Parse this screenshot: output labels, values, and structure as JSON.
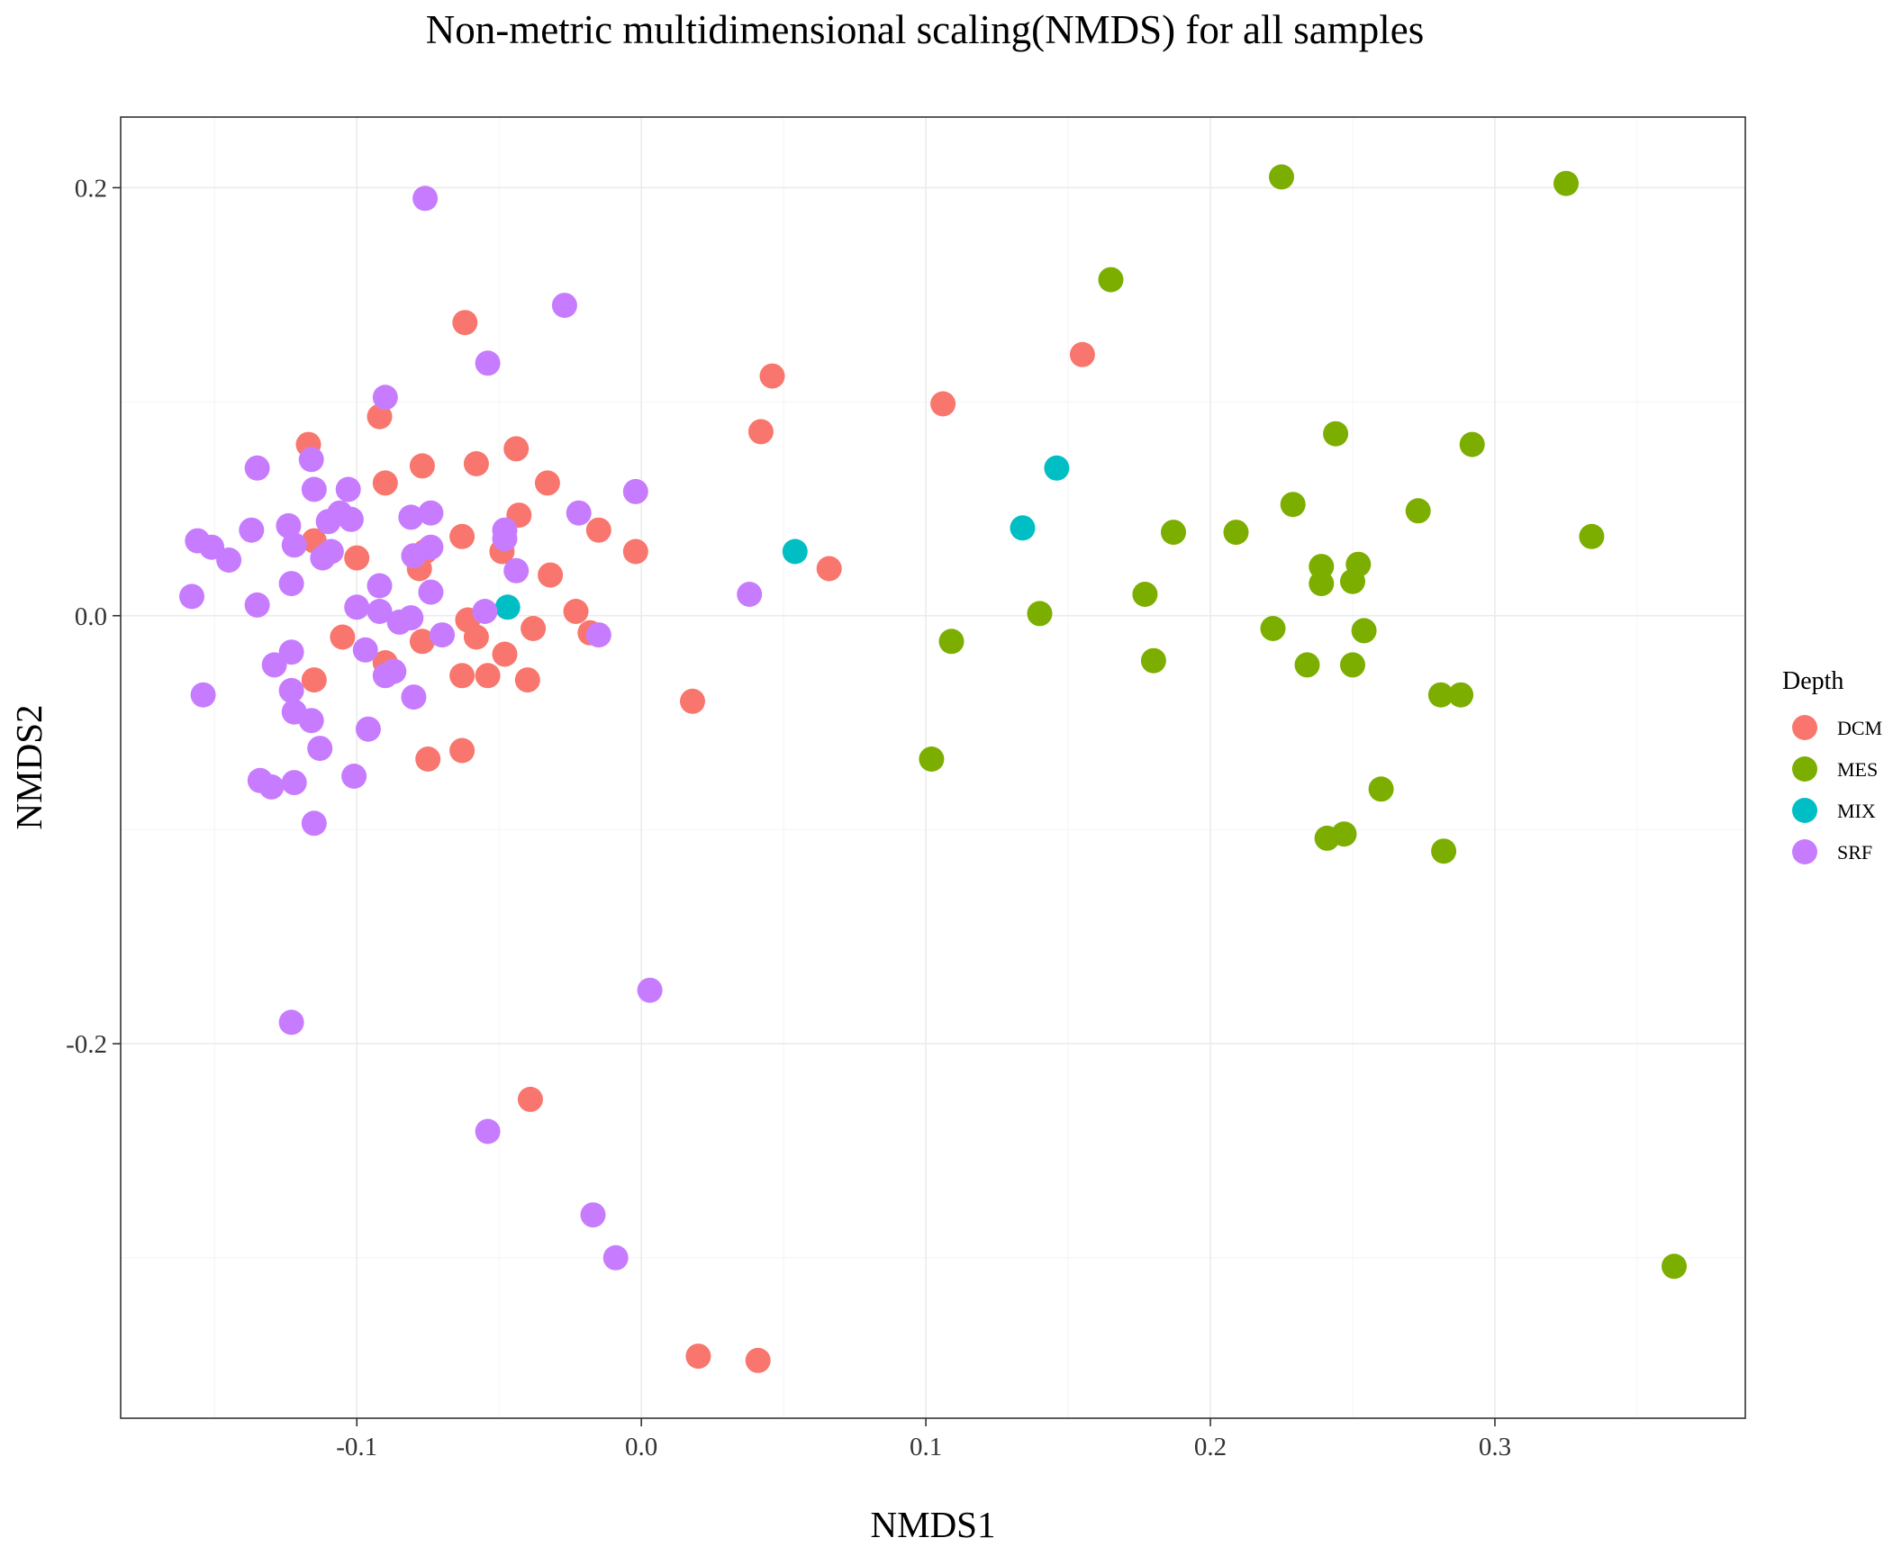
{
  "chart_data": {
    "type": "scatter",
    "title": "Non-metric multidimensional scaling(NMDS) for all samples",
    "xlabel": "NMDS1",
    "ylabel": "NMDS2",
    "xlim": [
      -0.183,
      0.388
    ],
    "ylim": [
      -0.375,
      0.233
    ],
    "xticks": [
      -0.1,
      0.0,
      0.1,
      0.2,
      0.3
    ],
    "xtick_labels": [
      "-0.1",
      "0.0",
      "0.1",
      "0.2",
      "0.3"
    ],
    "yticks": [
      -0.2,
      0.0,
      0.2
    ],
    "ytick_labels": [
      "-0.2",
      "0.0",
      "0.2"
    ],
    "grid": true,
    "legend": {
      "title": "Depth",
      "position": "right"
    },
    "series": [
      {
        "name": "DCM",
        "color": "#F8766D",
        "points": [
          [
            -0.117,
            0.08
          ],
          [
            -0.092,
            0.093
          ],
          [
            -0.062,
            0.137
          ],
          [
            -0.09,
            0.062
          ],
          [
            -0.077,
            0.07
          ],
          [
            -0.058,
            0.071
          ],
          [
            -0.044,
            0.078
          ],
          [
            -0.033,
            0.062
          ],
          [
            -0.043,
            0.047
          ],
          [
            -0.115,
            0.035
          ],
          [
            -0.063,
            0.037
          ],
          [
            -0.076,
            0.03
          ],
          [
            -0.078,
            0.022
          ],
          [
            -0.049,
            0.03
          ],
          [
            -0.1,
            0.027
          ],
          [
            -0.032,
            0.019
          ],
          [
            -0.015,
            0.04
          ],
          [
            -0.002,
            0.03
          ],
          [
            -0.061,
            -0.002
          ],
          [
            -0.105,
            -0.01
          ],
          [
            -0.077,
            -0.012
          ],
          [
            -0.058,
            -0.01
          ],
          [
            -0.023,
            0.002
          ],
          [
            -0.018,
            -0.008
          ],
          [
            -0.038,
            -0.006
          ],
          [
            -0.09,
            -0.022
          ],
          [
            -0.115,
            -0.03
          ],
          [
            -0.063,
            -0.028
          ],
          [
            -0.054,
            -0.028
          ],
          [
            -0.048,
            -0.018
          ],
          [
            -0.04,
            -0.03
          ],
          [
            -0.075,
            -0.067
          ],
          [
            -0.063,
            -0.063
          ],
          [
            0.018,
            -0.04
          ],
          [
            -0.039,
            -0.226
          ],
          [
            0.046,
            0.112
          ],
          [
            0.042,
            0.086
          ],
          [
            0.066,
            0.022
          ],
          [
            0.106,
            0.099
          ],
          [
            0.155,
            0.122
          ],
          [
            0.02,
            -0.346
          ],
          [
            0.041,
            -0.348
          ]
        ]
      },
      {
        "name": "MES",
        "color": "#7CAE00",
        "points": [
          [
            0.225,
            0.205
          ],
          [
            0.325,
            0.202
          ],
          [
            0.165,
            0.157
          ],
          [
            0.244,
            0.085
          ],
          [
            0.292,
            0.08
          ],
          [
            0.229,
            0.052
          ],
          [
            0.273,
            0.049
          ],
          [
            0.187,
            0.039
          ],
          [
            0.209,
            0.039
          ],
          [
            0.334,
            0.037
          ],
          [
            0.239,
            0.023
          ],
          [
            0.252,
            0.024
          ],
          [
            0.239,
            0.015
          ],
          [
            0.25,
            0.016
          ],
          [
            0.177,
            0.01
          ],
          [
            0.14,
            0.001
          ],
          [
            0.222,
            -0.006
          ],
          [
            0.254,
            -0.007
          ],
          [
            0.109,
            -0.012
          ],
          [
            0.18,
            -0.021
          ],
          [
            0.234,
            -0.023
          ],
          [
            0.25,
            -0.023
          ],
          [
            0.281,
            -0.037
          ],
          [
            0.288,
            -0.037
          ],
          [
            0.102,
            -0.067
          ],
          [
            0.26,
            -0.081
          ],
          [
            0.241,
            -0.104
          ],
          [
            0.247,
            -0.102
          ],
          [
            0.282,
            -0.11
          ],
          [
            0.363,
            -0.304
          ]
        ]
      },
      {
        "name": "MIX",
        "color": "#00BFC4",
        "points": [
          [
            0.146,
            0.069
          ],
          [
            0.134,
            0.041
          ],
          [
            0.054,
            0.03
          ],
          [
            -0.047,
            0.004
          ]
        ]
      },
      {
        "name": "SRF",
        "color": "#C77CFF",
        "points": [
          [
            -0.076,
            0.195
          ],
          [
            -0.027,
            0.145
          ],
          [
            -0.054,
            0.118
          ],
          [
            -0.09,
            0.102
          ],
          [
            -0.116,
            0.073
          ],
          [
            -0.135,
            0.069
          ],
          [
            -0.115,
            0.059
          ],
          [
            -0.103,
            0.059
          ],
          [
            -0.074,
            0.048
          ],
          [
            -0.081,
            0.046
          ],
          [
            -0.022,
            0.048
          ],
          [
            -0.002,
            0.058
          ],
          [
            -0.137,
            0.04
          ],
          [
            -0.124,
            0.042
          ],
          [
            -0.11,
            0.044
          ],
          [
            -0.102,
            0.045
          ],
          [
            -0.106,
            0.048
          ],
          [
            -0.156,
            0.035
          ],
          [
            -0.151,
            0.032
          ],
          [
            -0.122,
            0.033
          ],
          [
            -0.109,
            0.03
          ],
          [
            -0.112,
            0.027
          ],
          [
            -0.145,
            0.026
          ],
          [
            -0.08,
            0.028
          ],
          [
            -0.074,
            0.032
          ],
          [
            -0.048,
            0.04
          ],
          [
            -0.048,
            0.036
          ],
          [
            -0.044,
            0.021
          ],
          [
            -0.123,
            0.015
          ],
          [
            -0.092,
            0.014
          ],
          [
            -0.074,
            0.011
          ],
          [
            -0.158,
            0.009
          ],
          [
            -0.135,
            0.005
          ],
          [
            -0.1,
            0.004
          ],
          [
            -0.092,
            0.002
          ],
          [
            -0.081,
            -0.001
          ],
          [
            -0.085,
            -0.003
          ],
          [
            -0.055,
            0.002
          ],
          [
            0.038,
            0.01
          ],
          [
            -0.07,
            -0.009
          ],
          [
            -0.015,
            -0.009
          ],
          [
            -0.097,
            -0.016
          ],
          [
            -0.123,
            -0.017
          ],
          [
            -0.129,
            -0.023
          ],
          [
            -0.087,
            -0.026
          ],
          [
            -0.09,
            -0.028
          ],
          [
            -0.123,
            -0.035
          ],
          [
            -0.154,
            -0.037
          ],
          [
            -0.08,
            -0.038
          ],
          [
            -0.122,
            -0.045
          ],
          [
            -0.116,
            -0.049
          ],
          [
            -0.096,
            -0.053
          ],
          [
            -0.113,
            -0.062
          ],
          [
            -0.134,
            -0.077
          ],
          [
            -0.13,
            -0.08
          ],
          [
            -0.122,
            -0.078
          ],
          [
            -0.101,
            -0.075
          ],
          [
            -0.115,
            -0.097
          ],
          [
            0.003,
            -0.175
          ],
          [
            -0.123,
            -0.19
          ],
          [
            -0.054,
            -0.241
          ],
          [
            -0.017,
            -0.28
          ],
          [
            -0.009,
            -0.3
          ]
        ]
      }
    ]
  }
}
